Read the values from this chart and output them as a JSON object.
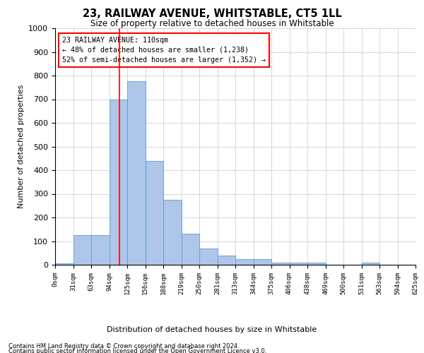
{
  "title1": "23, RAILWAY AVENUE, WHITSTABLE, CT5 1LL",
  "title2": "Size of property relative to detached houses in Whitstable",
  "xlabel": "Distribution of detached houses by size in Whitstable",
  "ylabel": "Number of detached properties",
  "bin_labels": [
    "0sqm",
    "31sqm",
    "63sqm",
    "94sqm",
    "125sqm",
    "156sqm",
    "188sqm",
    "219sqm",
    "250sqm",
    "281sqm",
    "313sqm",
    "344sqm",
    "375sqm",
    "406sqm",
    "438sqm",
    "469sqm",
    "500sqm",
    "531sqm",
    "563sqm",
    "594sqm",
    "625sqm"
  ],
  "bar_heights": [
    5,
    125,
    125,
    700,
    775,
    440,
    275,
    130,
    70,
    40,
    25,
    25,
    10,
    10,
    10,
    0,
    0,
    10,
    0,
    0
  ],
  "bar_color": "#aec6e8",
  "bar_edge_color": "#5a9fd4",
  "ylim": [
    0,
    1000
  ],
  "yticks": [
    0,
    100,
    200,
    300,
    400,
    500,
    600,
    700,
    800,
    900,
    1000
  ],
  "red_line_x": 3.55,
  "annotation_title": "23 RAILWAY AVENUE: 110sqm",
  "annotation_line1": "← 48% of detached houses are smaller (1,238)",
  "annotation_line2": "52% of semi-detached houses are larger (1,352) →",
  "footnote1": "Contains HM Land Registry data © Crown copyright and database right 2024.",
  "footnote2": "Contains public sector information licensed under the Open Government Licence v3.0.",
  "background_color": "#ffffff",
  "grid_color": "#d0d0d0"
}
